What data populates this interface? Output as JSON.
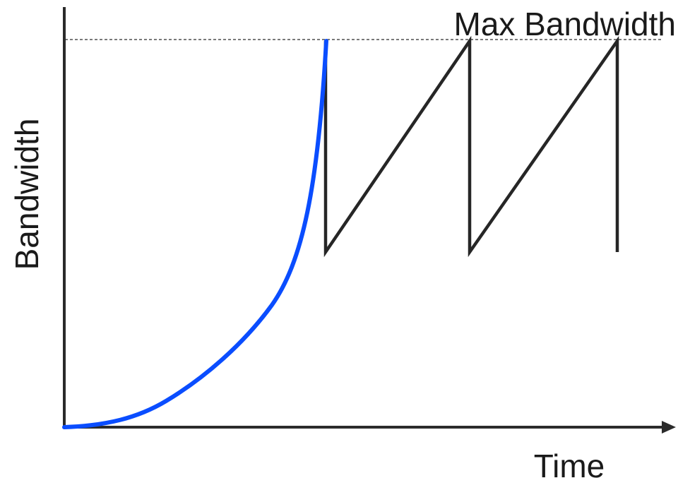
{
  "diagram": {
    "x_axis_label": "Time",
    "y_axis_label": "Bandwidth",
    "max_line_label": "Max Bandwidth",
    "colors": {
      "axis": "#2b2b2b",
      "slow_start_curve": "#0a4dff",
      "sawtooth": "#262626",
      "max_line": "#2b2b2b"
    }
  }
}
